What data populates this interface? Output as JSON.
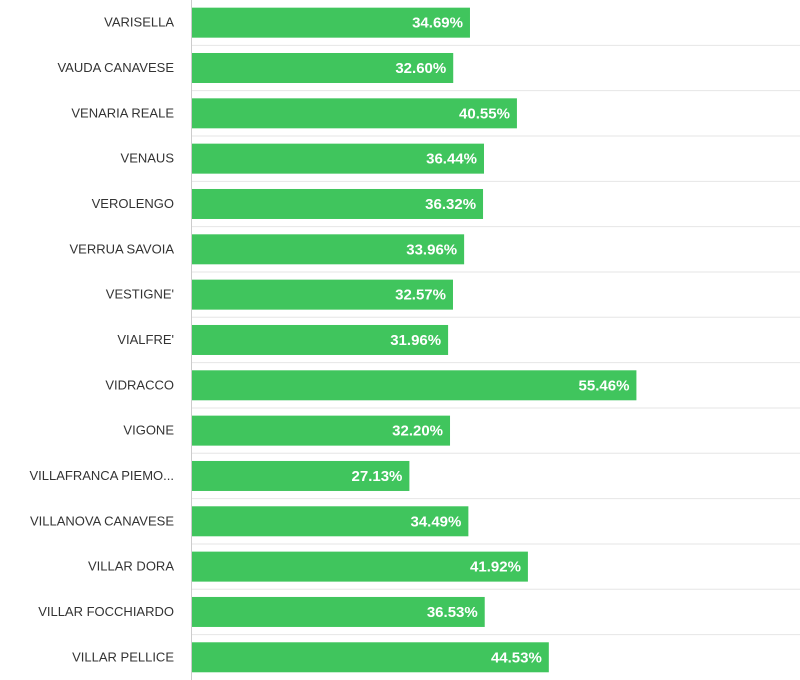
{
  "chart_data": {
    "type": "bar",
    "orientation": "horizontal",
    "categories": [
      "VARISELLA",
      "VAUDA CANAVESE",
      "VENARIA REALE",
      "VENAUS",
      "VEROLENGO",
      "VERRUA SAVOIA",
      "VESTIGNE'",
      "VIALFRE'",
      "VIDRACCO",
      "VIGONE",
      "VILLAFRANCA PIEMO...",
      "VILLANOVA CANAVESE",
      "VILLAR DORA",
      "VILLAR FOCCHIARDO",
      "VILLAR PELLICE"
    ],
    "values": [
      34.69,
      32.6,
      40.55,
      36.44,
      36.32,
      33.96,
      32.57,
      31.96,
      55.46,
      32.2,
      27.13,
      34.49,
      41.92,
      36.53,
      44.53
    ],
    "value_labels": [
      "34.69%",
      "32.60%",
      "40.55%",
      "36.44%",
      "36.32%",
      "33.96%",
      "32.57%",
      "31.96%",
      "55.46%",
      "32.20%",
      "27.13%",
      "34.49%",
      "41.92%",
      "36.53%",
      "44.53%"
    ],
    "xlim": [
      0,
      76
    ],
    "title": "",
    "xlabel": "",
    "ylabel": "",
    "grid": "horizontal separators",
    "legend": "none",
    "colors": {
      "bar": "#40c55d",
      "value_text": "#ffffff",
      "category_text": "#333333",
      "separator": "#e6e6e6",
      "axis": "#cccccc"
    }
  }
}
